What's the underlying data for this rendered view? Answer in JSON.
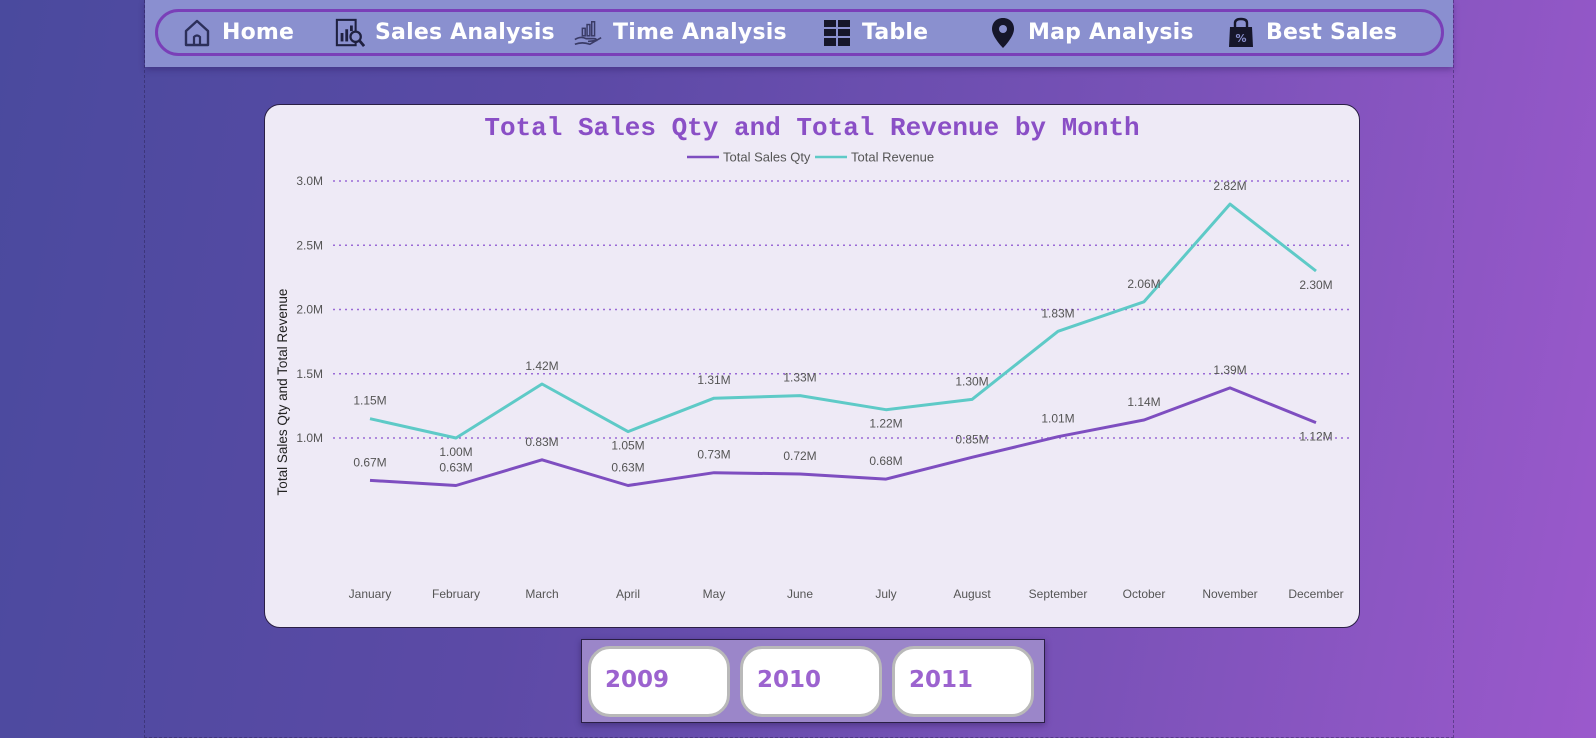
{
  "nav": {
    "items": [
      {
        "label": "Home",
        "icon": "home-icon"
      },
      {
        "label": "Sales Analysis",
        "icon": "sales-analysis-icon"
      },
      {
        "label": "Time Analysis",
        "icon": "hand-chart-icon"
      },
      {
        "label": "Table",
        "icon": "table-grid-icon"
      },
      {
        "label": "Map Analysis",
        "icon": "map-pin-icon"
      },
      {
        "label": "Best Sales",
        "icon": "discount-bag-icon"
      }
    ]
  },
  "years": [
    "2009",
    "2010",
    "2011"
  ],
  "colors": {
    "qty": "#7e4ec0",
    "revenue": "#5ecac7",
    "grid": "#9a6ad6",
    "title": "#8a4fc6"
  },
  "chart_data": {
    "type": "line",
    "title": "Total Sales Qty and Total Revenue by Month",
    "ylabel": "Total Sales Qty and Total Revenue",
    "xlabel": "",
    "categories": [
      "January",
      "February",
      "March",
      "April",
      "May",
      "June",
      "July",
      "August",
      "September",
      "October",
      "November",
      "December"
    ],
    "yticks": [
      "1.0M",
      "1.5M",
      "2.0M",
      "2.5M",
      "3.0M"
    ],
    "ylim": [
      0.5,
      3.0
    ],
    "legend_position": "top-center",
    "grid": true,
    "series": [
      {
        "name": "Total Sales Qty",
        "values": [
          0.67,
          0.63,
          0.83,
          0.63,
          0.73,
          0.72,
          0.68,
          0.85,
          1.01,
          1.14,
          1.39,
          1.12
        ],
        "labels": [
          "0.67M",
          "0.63M",
          "0.83M",
          "0.63M",
          "0.73M",
          "0.72M",
          "0.68M",
          "0.85M",
          "1.01M",
          "1.14M",
          "1.39M",
          "1.12M"
        ]
      },
      {
        "name": "Total Revenue",
        "values": [
          1.15,
          1.0,
          1.42,
          1.05,
          1.31,
          1.33,
          1.22,
          1.3,
          1.83,
          2.06,
          2.82,
          2.3
        ],
        "labels": [
          "1.15M",
          "1.00M",
          "1.42M",
          "1.05M",
          "1.31M",
          "1.33M",
          "1.22M",
          "1.30M",
          "1.83M",
          "2.06M",
          "2.82M",
          "2.30M"
        ]
      }
    ]
  }
}
